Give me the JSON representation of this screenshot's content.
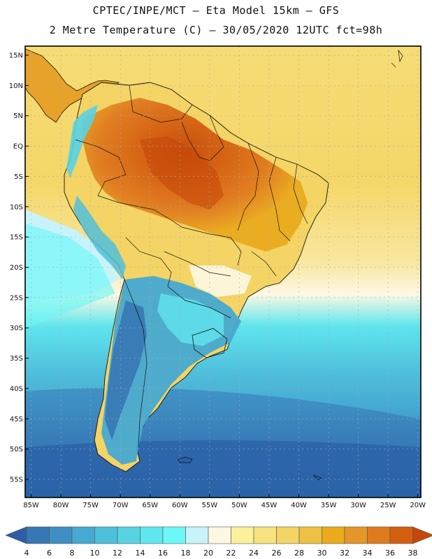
{
  "header": {
    "title_line1": "CPTEC/INPE/MCT –  Eta Model 15km – GFS",
    "title_line2": "2 Metre Temperature (C) – 30/05/2020 12UTC fct=98h"
  },
  "map": {
    "variable": "2 Metre Temperature",
    "units": "C",
    "lat_labels": [
      "15N",
      "10N",
      "5N",
      "EQ",
      "5S",
      "10S",
      "15S",
      "20S",
      "25S",
      "30S",
      "35S",
      "40S",
      "45S",
      "50S",
      "55S"
    ],
    "lon_labels": [
      "85W",
      "80W",
      "75W",
      "70W",
      "65W",
      "60W",
      "55W",
      "50W",
      "45W",
      "40W",
      "35W",
      "30W",
      "25W",
      "20W"
    ],
    "lat_values": [
      15,
      10,
      5,
      0,
      -5,
      -10,
      -15,
      -20,
      -25,
      -30,
      -35,
      -40,
      -45,
      -50,
      -55
    ],
    "lon_values": [
      -85,
      -80,
      -75,
      -70,
      -65,
      -60,
      -55,
      -50,
      -45,
      -40,
      -35,
      -30,
      -25,
      -20
    ],
    "extent": {
      "lon_min": -86,
      "lon_max": -19.5,
      "lat_min": -58,
      "lat_max": 16.5
    }
  },
  "colorbar": {
    "labels": [
      "4",
      "6",
      "8",
      "10",
      "12",
      "14",
      "16",
      "18",
      "20",
      "22",
      "24",
      "26",
      "28",
      "30",
      "32",
      "34",
      "36",
      "38"
    ],
    "colors": [
      "#2a5fa6",
      "#3677b4",
      "#3f8fc5",
      "#46a9d2",
      "#4fc0dc",
      "#57d3e4",
      "#5fe6ee",
      "#6cf8f8",
      "#c8f3fb",
      "#fdf8e4",
      "#fbf09b",
      "#f6e27e",
      "#f3d465",
      "#eec145",
      "#eaab1d",
      "#e69628",
      "#e07a1e",
      "#d45f10",
      "#c6470a"
    ]
  }
}
